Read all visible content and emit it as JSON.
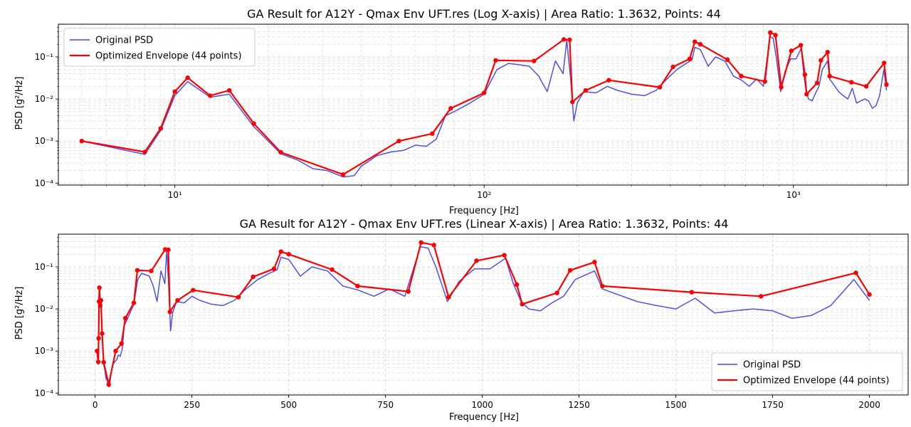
{
  "chart_data": [
    {
      "type": "line",
      "title": "GA Result for A12Y - Qmax Env UFT.res (Log X-axis) | Area Ratio: 1.3632, Points: 44",
      "xlabel": "Frequency [Hz]",
      "ylabel": "PSD [g²/Hz]",
      "xscale": "log",
      "yscale": "log",
      "xlim": [
        4.2,
        2350
      ],
      "ylim": [
        9e-05,
        0.6
      ],
      "x_ticks": [
        10,
        100,
        1000
      ],
      "x_tick_labels": [
        "10¹",
        "10²",
        "10³"
      ],
      "y_ticks": [
        0.0001,
        0.001,
        0.01,
        0.1
      ],
      "y_tick_labels": [
        "10⁻⁴",
        "10⁻³",
        "10⁻²",
        "10⁻¹"
      ],
      "grid": true,
      "legend": "top-left",
      "series": [
        {
          "name": "Original PSD",
          "color": "#4747e6",
          "x": [
            5,
            8,
            9,
            10,
            11,
            13,
            15,
            18,
            22,
            25,
            28,
            31,
            35,
            38,
            40,
            45,
            50,
            55,
            60,
            65,
            70,
            75,
            80,
            90,
            100,
            110,
            120,
            130,
            140,
            150,
            160,
            170,
            180,
            185,
            190,
            195,
            200,
            210,
            230,
            250,
            270,
            300,
            330,
            360,
            390,
            420,
            450,
            470,
            480,
            500,
            530,
            560,
            600,
            640,
            680,
            720,
            760,
            800,
            840,
            860,
            880,
            910,
            940,
            980,
            1020,
            1060,
            1080,
            1100,
            1120,
            1150,
            1180,
            1210,
            1240,
            1290,
            1310,
            1350,
            1400,
            1450,
            1500,
            1550,
            1600,
            1650,
            1700,
            1750,
            1800,
            1850,
            1900,
            1960,
            2000
          ],
          "y": [
            0.001,
            0.00048,
            0.0018,
            0.012,
            0.026,
            0.011,
            0.013,
            0.0022,
            0.0005,
            0.00035,
            0.00022,
            0.0002,
            0.00014,
            0.00015,
            0.00025,
            0.00045,
            0.00055,
            0.0006,
            0.0008,
            0.00075,
            0.0011,
            0.004,
            0.005,
            0.008,
            0.013,
            0.05,
            0.07,
            0.065,
            0.06,
            0.035,
            0.015,
            0.08,
            0.04,
            0.25,
            0.035,
            0.003,
            0.008,
            0.015,
            0.014,
            0.02,
            0.016,
            0.013,
            0.012,
            0.016,
            0.03,
            0.05,
            0.07,
            0.085,
            0.17,
            0.15,
            0.06,
            0.1,
            0.08,
            0.035,
            0.028,
            0.02,
            0.03,
            0.02,
            0.3,
            0.28,
            0.1,
            0.015,
            0.045,
            0.09,
            0.09,
            0.16,
            0.04,
            0.015,
            0.01,
            0.009,
            0.014,
            0.02,
            0.05,
            0.08,
            0.03,
            0.022,
            0.015,
            0.012,
            0.01,
            0.018,
            0.008,
            0.009,
            0.01,
            0.009,
            0.006,
            0.007,
            0.012,
            0.05,
            0.016
          ]
        },
        {
          "name": "Optimized Envelope (44 points)",
          "color": "#ff0000",
          "x": [
            5,
            8,
            9,
            10,
            11,
            13,
            15,
            18,
            22,
            35,
            53,
            68,
            78,
            100,
            109,
            145,
            181,
            189,
            193,
            213,
            253,
            370,
            408,
            462,
            480,
            500,
            612,
            678,
            809,
            842,
            875,
            913,
            985,
            1057,
            1089,
            1103,
            1193,
            1227,
            1290,
            1310,
            1541,
            1720,
            1965,
            2000
          ],
          "y": [
            0.001,
            0.00055,
            0.002,
            0.015,
            0.032,
            0.012,
            0.016,
            0.0026,
            0.00054,
            0.00016,
            0.001,
            0.0015,
            0.006,
            0.014,
            0.083,
            0.08,
            0.26,
            0.255,
            0.0085,
            0.016,
            0.028,
            0.019,
            0.058,
            0.09,
            0.23,
            0.2,
            0.086,
            0.035,
            0.026,
            0.38,
            0.33,
            0.019,
            0.14,
            0.19,
            0.038,
            0.013,
            0.024,
            0.083,
            0.13,
            0.035,
            0.025,
            0.02,
            0.072,
            0.022
          ]
        }
      ]
    },
    {
      "type": "line",
      "title": "GA Result for A12Y - Qmax Env UFT.res (Linear X-axis) | Area Ratio: 1.3632, Points: 44",
      "xlabel": "Frequency [Hz]",
      "ylabel": "PSD [g²/Hz]",
      "xscale": "linear",
      "yscale": "log",
      "xlim": [
        -95,
        2100
      ],
      "ylim": [
        9e-05,
        0.6
      ],
      "x_ticks": [
        0,
        250,
        500,
        750,
        1000,
        1250,
        1500,
        1750,
        2000
      ],
      "x_tick_labels": [
        "0",
        "250",
        "500",
        "750",
        "1000",
        "1250",
        "1500",
        "1750",
        "2000"
      ],
      "y_ticks": [
        0.0001,
        0.001,
        0.01,
        0.1
      ],
      "y_tick_labels": [
        "10⁻⁴",
        "10⁻³",
        "10⁻²",
        "10⁻¹"
      ],
      "grid": true,
      "legend": "bottom-right",
      "series": [
        {
          "name": "Original PSD",
          "color": "#4747e6",
          "x": [
            5,
            8,
            9,
            10,
            11,
            13,
            15,
            18,
            22,
            25,
            28,
            31,
            35,
            38,
            40,
            45,
            50,
            55,
            60,
            65,
            70,
            75,
            80,
            90,
            100,
            110,
            120,
            130,
            140,
            150,
            160,
            170,
            180,
            185,
            190,
            195,
            200,
            210,
            230,
            250,
            270,
            300,
            330,
            360,
            390,
            420,
            450,
            470,
            480,
            500,
            530,
            560,
            600,
            640,
            680,
            720,
            760,
            800,
            840,
            860,
            880,
            910,
            940,
            980,
            1020,
            1060,
            1080,
            1100,
            1120,
            1150,
            1180,
            1210,
            1240,
            1290,
            1310,
            1350,
            1400,
            1450,
            1500,
            1550,
            1600,
            1650,
            1700,
            1750,
            1800,
            1850,
            1900,
            1960,
            2000
          ],
          "y": [
            0.001,
            0.00048,
            0.0018,
            0.012,
            0.026,
            0.011,
            0.013,
            0.0022,
            0.0005,
            0.00035,
            0.00022,
            0.0002,
            0.00014,
            0.00015,
            0.00025,
            0.00045,
            0.00055,
            0.0006,
            0.0008,
            0.00075,
            0.0011,
            0.004,
            0.005,
            0.008,
            0.013,
            0.05,
            0.07,
            0.065,
            0.06,
            0.035,
            0.015,
            0.08,
            0.04,
            0.25,
            0.035,
            0.003,
            0.008,
            0.015,
            0.014,
            0.02,
            0.016,
            0.013,
            0.012,
            0.016,
            0.03,
            0.05,
            0.07,
            0.085,
            0.17,
            0.15,
            0.06,
            0.1,
            0.08,
            0.035,
            0.028,
            0.02,
            0.03,
            0.02,
            0.3,
            0.28,
            0.1,
            0.015,
            0.045,
            0.09,
            0.09,
            0.16,
            0.04,
            0.015,
            0.01,
            0.009,
            0.014,
            0.02,
            0.05,
            0.08,
            0.03,
            0.022,
            0.015,
            0.012,
            0.01,
            0.018,
            0.008,
            0.009,
            0.01,
            0.009,
            0.006,
            0.007,
            0.012,
            0.05,
            0.016
          ]
        },
        {
          "name": "Optimized Envelope (44 points)",
          "color": "#ff0000",
          "x": [
            5,
            8,
            9,
            10,
            11,
            13,
            15,
            18,
            22,
            35,
            53,
            68,
            78,
            100,
            109,
            145,
            181,
            189,
            193,
            213,
            253,
            370,
            408,
            462,
            480,
            500,
            612,
            678,
            809,
            842,
            875,
            913,
            985,
            1057,
            1089,
            1103,
            1193,
            1227,
            1290,
            1310,
            1541,
            1720,
            1965,
            2000
          ],
          "y": [
            0.001,
            0.00055,
            0.002,
            0.015,
            0.032,
            0.012,
            0.016,
            0.0026,
            0.00054,
            0.00016,
            0.001,
            0.0015,
            0.006,
            0.014,
            0.083,
            0.08,
            0.26,
            0.255,
            0.0085,
            0.016,
            0.028,
            0.019,
            0.058,
            0.09,
            0.23,
            0.2,
            0.086,
            0.035,
            0.026,
            0.38,
            0.33,
            0.019,
            0.14,
            0.19,
            0.038,
            0.013,
            0.024,
            0.083,
            0.13,
            0.035,
            0.025,
            0.02,
            0.072,
            0.022
          ]
        }
      ]
    }
  ]
}
